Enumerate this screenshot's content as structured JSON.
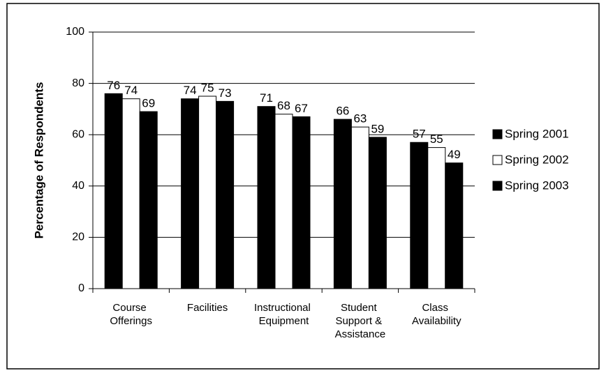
{
  "chart_data": {
    "type": "bar",
    "y_label": "Percentage of Respondents",
    "categories": [
      "Course Offerings",
      "Facilities",
      "Instructional Equipment",
      "Student Support & Assistance",
      "Class Availability"
    ],
    "series": [
      {
        "name": "Spring 2001",
        "color": "#000000",
        "values": [
          76,
          74,
          71,
          66,
          57
        ]
      },
      {
        "name": "Spring 2002",
        "color": "#ffffff",
        "values": [
          74,
          75,
          68,
          63,
          55
        ]
      },
      {
        "name": "Spring 2003",
        "color": "#000000",
        "values": [
          69,
          73,
          67,
          59,
          49
        ]
      }
    ],
    "ylim": [
      0,
      100
    ],
    "yticks": [
      0,
      20,
      40,
      60,
      80,
      100
    ],
    "grid": true,
    "legend": "right"
  }
}
